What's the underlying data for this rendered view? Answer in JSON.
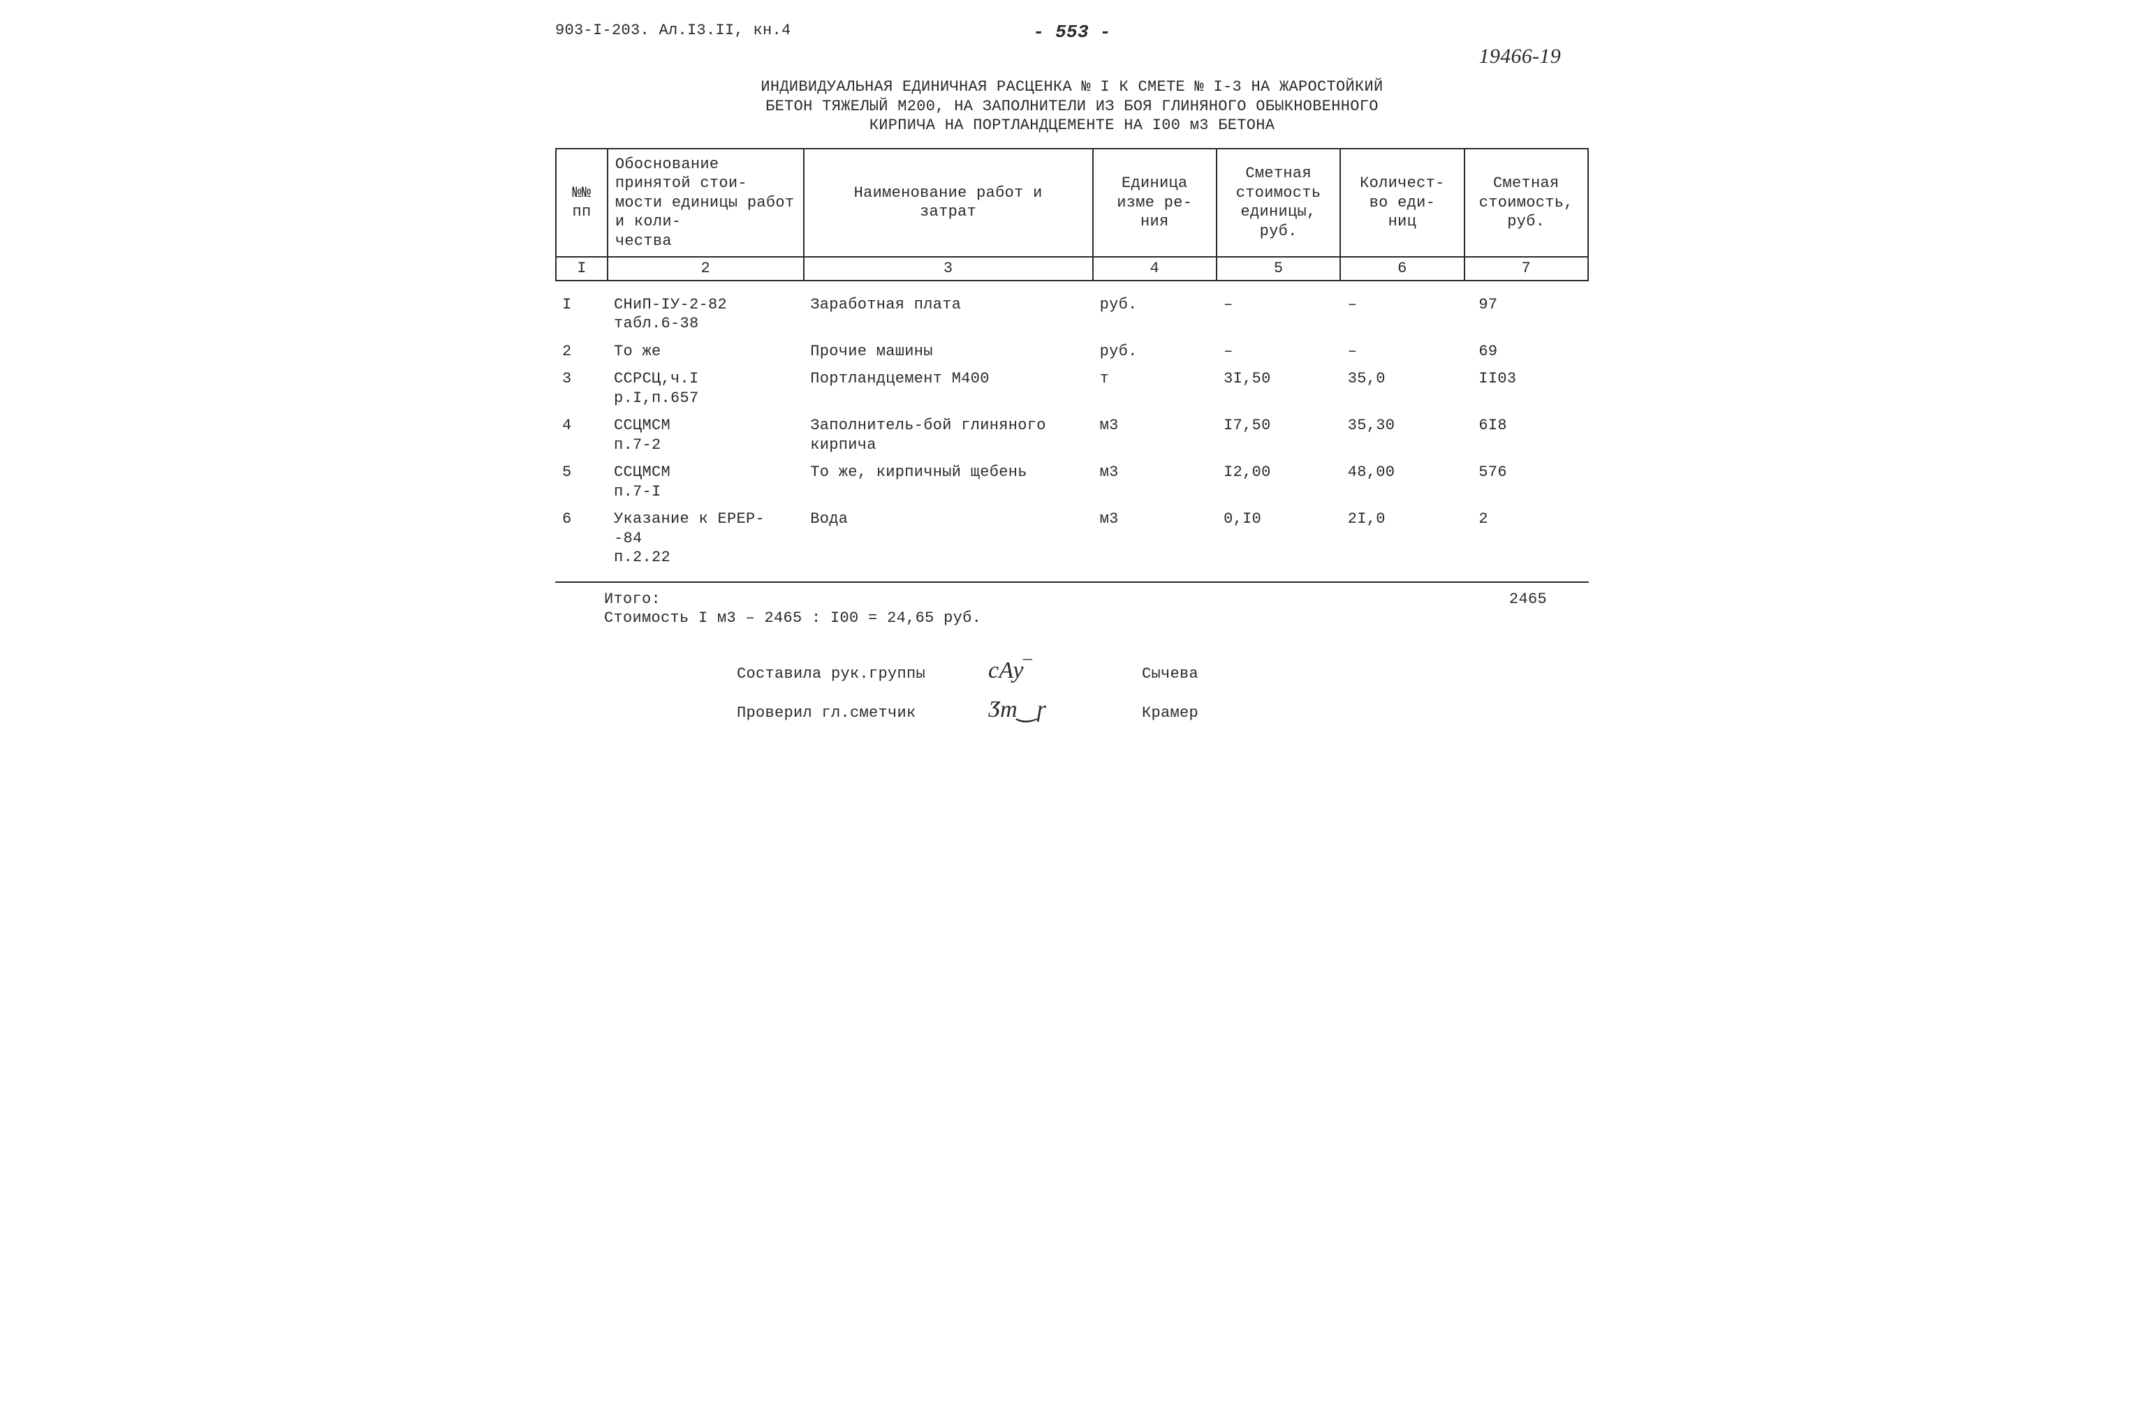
{
  "header": {
    "doc_ref": "903-I-203. Ал.I3.II, кн.4",
    "page_number": "- 553 -",
    "handwritten_ref": "19466-19"
  },
  "title": {
    "line1": "ИНДИВИДУАЛЬНАЯ ЕДИНИЧНАЯ РАСЦЕНКА № I К СМЕТЕ № I-3 НА  ЖАРОСТОЙКИЙ",
    "line2": "БЕТОН ТЯЖЕЛЫЙ М200, НА ЗАПОЛНИТЕЛИ  ИЗ БОЯ ГЛИНЯНОГО ОБЫКНОВЕННОГО",
    "line3": "КИРПИЧА НА ПОРТЛАНДЦЕМЕНТЕ НА I00 м3 БЕТОНА"
  },
  "table_head": {
    "c1": "№№\nпп",
    "c2": "Обоснование принятой стои-\nмости единицы работ и коли-\nчества",
    "c3": "Наименование работ и\nзатрат",
    "c4": "Единица изме ре-\nния",
    "c5": "Сметная стоимость единицы, руб.",
    "c6": "Количест-\nво еди-\nниц",
    "c7": "Сметная стоимость, руб.",
    "n1": "I",
    "n2": "2",
    "n3": "3",
    "n4": "4",
    "n5": "5",
    "n6": "6",
    "n7": "7"
  },
  "rows": [
    {
      "n": "I",
      "basis": "СНиП-IУ-2-82\nтабл.6-38",
      "name": "Заработная плата",
      "unit": "руб.",
      "p": "–",
      "q": "–",
      "cost": "97"
    },
    {
      "n": "2",
      "basis": "То же",
      "name": "Прочие машины",
      "unit": "руб.",
      "p": "–",
      "q": "–",
      "cost": "69"
    },
    {
      "n": "3",
      "basis": "ССРСЦ,ч.I\nр.I,п.657",
      "name": "Портландцемент М400",
      "unit": "т",
      "p": "3I,50",
      "q": "35,0",
      "cost": "II03"
    },
    {
      "n": "4",
      "basis": "ССЦМСМ\nп.7-2",
      "name": "Заполнитель-бой глиняного\nкирпича",
      "unit": "м3",
      "p": "I7,50",
      "q": "35,30",
      "cost": "6I8"
    },
    {
      "n": "5",
      "basis": "ССЦМСМ\nп.7-I",
      "name": "То же, кирпичный щебень",
      "unit": "м3",
      "p": "I2,00",
      "q": "48,00",
      "cost": "576"
    },
    {
      "n": "6",
      "basis": "Указание к ЕРЕР-\n-84\nп.2.22",
      "name": "Вода",
      "unit": "м3",
      "p": "0,I0",
      "q": "2I,0",
      "cost": "2"
    }
  ],
  "totals": {
    "label": "Итого:",
    "value": "2465",
    "calc": "Стоимость I м3 – 2465 : I00 = 24,65 руб."
  },
  "signatures": {
    "author_role": "Составила рук.группы",
    "author_sig": "cАу‾",
    "author_name": "Сычева",
    "checker_role": "Проверил гл.сметчик",
    "checker_sig": "Ӡm‿ɼ",
    "checker_name": "Крамер"
  }
}
